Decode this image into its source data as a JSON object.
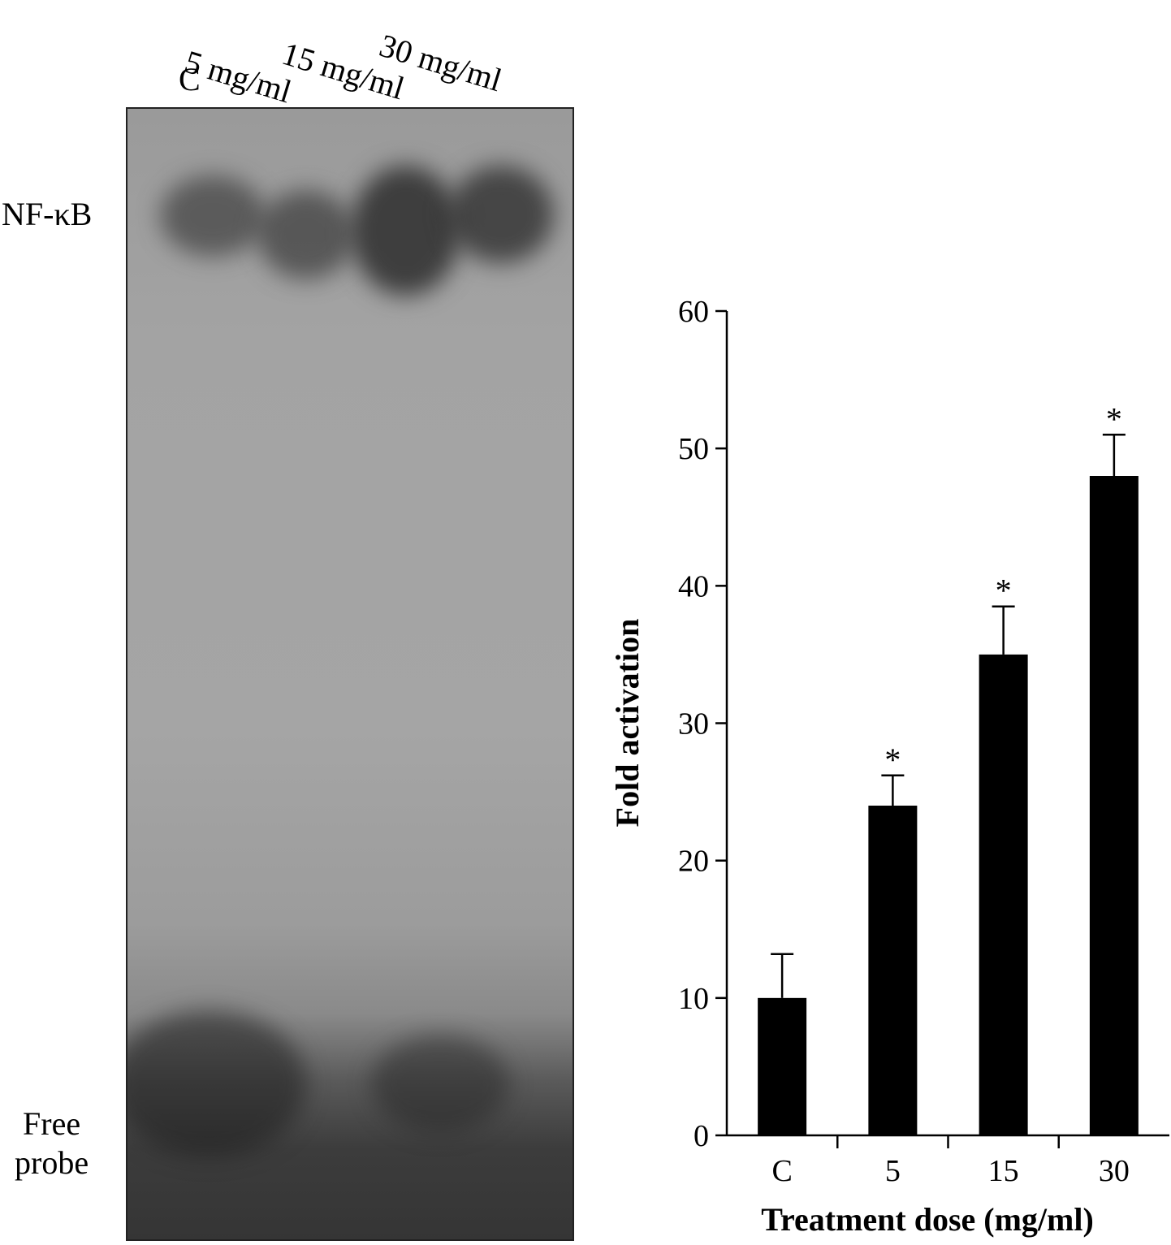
{
  "gel": {
    "lanes": [
      {
        "label": "C"
      },
      {
        "label": "5 mg/ml"
      },
      {
        "label": "15 mg/ml"
      },
      {
        "label": "30 mg/ml"
      }
    ],
    "band_label": "NF-κB",
    "free_probe_label_line1": "Free",
    "free_probe_label_line2": "probe",
    "band_intensity": [
      0.45,
      0.5,
      0.95,
      0.8
    ]
  },
  "chart_data": {
    "type": "bar",
    "categories": [
      "C",
      "5",
      "15",
      "30"
    ],
    "values": [
      10,
      24,
      35,
      48
    ],
    "errors": [
      3.2,
      2.2,
      3.5,
      3.0
    ],
    "significance": [
      "",
      "*",
      "*",
      "*"
    ],
    "xlabel": "Treatment dose (mg/ml)",
    "ylabel": "Fold activation",
    "ylim": [
      0,
      60
    ],
    "yticks": [
      0,
      10,
      20,
      30,
      40,
      50,
      60
    ],
    "bar_color": "#000000"
  }
}
